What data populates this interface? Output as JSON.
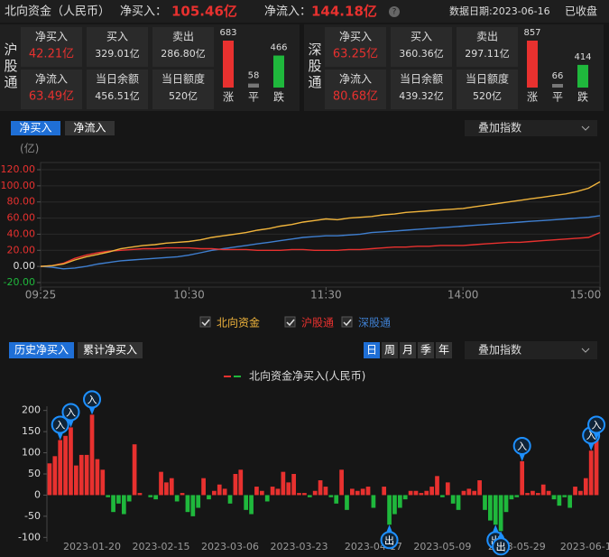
{
  "header": {
    "title": "北向资金（人民币）",
    "net_buy_label": "净买入：",
    "net_buy": "105.46亿",
    "net_inflow_label": "净流入：",
    "net_inflow": "144.18亿",
    "date": "数据日期:2023-06-16",
    "status": "已收盘"
  },
  "panels": [
    {
      "name": "沪股通",
      "stats": [
        {
          "label": "净买入",
          "value": "42.21亿"
        },
        {
          "label": "买入",
          "value": "329.01亿"
        },
        {
          "label": "卖出",
          "value": "286.80亿"
        },
        {
          "label": "净流入",
          "value": "63.49亿"
        },
        {
          "label": "当日余额",
          "value": "456.51亿"
        },
        {
          "label": "当日额度",
          "value": "520亿"
        }
      ],
      "breadth": [
        {
          "label": "涨",
          "value": 683,
          "color": "#e8312f"
        },
        {
          "label": "平",
          "value": 58,
          "color": "#777777"
        },
        {
          "label": "跌",
          "value": 466,
          "color": "#1fb83c"
        }
      ]
    },
    {
      "name": "深股通",
      "stats": [
        {
          "label": "净买入",
          "value": "63.25亿"
        },
        {
          "label": "买入",
          "value": "360.36亿"
        },
        {
          "label": "卖出",
          "value": "297.11亿"
        },
        {
          "label": "净流入",
          "value": "80.68亿"
        },
        {
          "label": "当日余额",
          "value": "439.32亿"
        },
        {
          "label": "当日额度",
          "value": "520亿"
        }
      ],
      "breadth": [
        {
          "label": "涨",
          "value": 857,
          "color": "#e8312f"
        },
        {
          "label": "平",
          "value": 66,
          "color": "#777777"
        },
        {
          "label": "跌",
          "value": 414,
          "color": "#1fb83c"
        }
      ]
    }
  ],
  "tabs_top": [
    "净买入",
    "净流入"
  ],
  "overlay_top": "叠加指数",
  "tabs_bottom": [
    "历史净买入",
    "累计净买入"
  ],
  "periods": [
    "日",
    "周",
    "月",
    "季",
    "年"
  ],
  "overlay_bottom": "叠加指数",
  "chart_data": [
    {
      "type": "line",
      "y_unit": "(亿)",
      "ylim": [
        -20,
        120
      ],
      "grid": true,
      "yticks": [
        {
          "value": 120,
          "label": "120.00"
        },
        {
          "value": 100,
          "label": "100.00"
        },
        {
          "value": 80,
          "label": "80.00"
        },
        {
          "value": 60,
          "label": "60.00"
        },
        {
          "value": 40,
          "label": "40.00"
        },
        {
          "value": 20,
          "label": "20.00"
        },
        {
          "value": 0,
          "label": "0.00"
        },
        {
          "value": -20,
          "label": "-20.00"
        }
      ],
      "categories": [
        "09:25",
        null,
        null,
        null,
        null,
        null,
        null,
        null,
        null,
        null,
        null,
        null,
        null,
        "10:30",
        null,
        null,
        null,
        null,
        null,
        null,
        null,
        null,
        null,
        null,
        null,
        "11:30",
        null,
        null,
        null,
        null,
        null,
        null,
        null,
        null,
        null,
        null,
        null,
        "14:00",
        null,
        null,
        null,
        null,
        null,
        null,
        null,
        null,
        null,
        null,
        null,
        "15:00"
      ],
      "series": [
        {
          "name": "北向资金",
          "color": "#f0b43c",
          "values": [
            0,
            1,
            3,
            8,
            12,
            15,
            18,
            22,
            24,
            26,
            27,
            29,
            30,
            31,
            33,
            36,
            38,
            40,
            42,
            45,
            47,
            50,
            52,
            55,
            57,
            59,
            58,
            60,
            61,
            62,
            64,
            65,
            67,
            68,
            69,
            70,
            71,
            72,
            74,
            76,
            78,
            80,
            82,
            84,
            86,
            88,
            90,
            93,
            97,
            105
          ]
        },
        {
          "name": "沪股通",
          "color": "#e8312f",
          "values": [
            0,
            1,
            4,
            10,
            14,
            17,
            19,
            20,
            21,
            22,
            22,
            23,
            23,
            23,
            22,
            22,
            21,
            21,
            21,
            20,
            20,
            20,
            21,
            21,
            20,
            20,
            20,
            21,
            21,
            22,
            23,
            24,
            24,
            25,
            25,
            26,
            26,
            26,
            27,
            28,
            29,
            30,
            30,
            31,
            32,
            33,
            34,
            35,
            36,
            42
          ]
        },
        {
          "name": "深股通",
          "color": "#3f7fd0",
          "values": [
            0,
            -1,
            -3,
            -2,
            0,
            3,
            5,
            7,
            8,
            9,
            10,
            11,
            12,
            14,
            17,
            20,
            22,
            24,
            26,
            28,
            30,
            32,
            34,
            36,
            37,
            38,
            38,
            39,
            40,
            42,
            43,
            44,
            45,
            46,
            47,
            48,
            49,
            50,
            51,
            52,
            53,
            54,
            55,
            56,
            57,
            58,
            59,
            60,
            61,
            63
          ]
        }
      ]
    },
    {
      "type": "bar",
      "legend": "北向资金净买入(人民币)",
      "ylim": [
        -110,
        210
      ],
      "yticks": [
        200,
        150,
        100,
        50,
        0,
        -50,
        -100
      ],
      "up_color": "#e8312f",
      "down_color": "#1fb83c",
      "categories": [
        null,
        null,
        null,
        null,
        null,
        null,
        null,
        null,
        "2023-01-20",
        null,
        null,
        null,
        null,
        null,
        null,
        null,
        null,
        null,
        null,
        null,
        null,
        "2023-02-15",
        null,
        null,
        null,
        null,
        null,
        null,
        null,
        null,
        null,
        null,
        null,
        null,
        "2023-03-06",
        null,
        null,
        null,
        null,
        null,
        null,
        null,
        null,
        null,
        null,
        null,
        null,
        "2023-03-23",
        null,
        null,
        null,
        null,
        null,
        null,
        null,
        null,
        null,
        null,
        null,
        null,
        null,
        "2023-04-17",
        null,
        null,
        null,
        null,
        null,
        null,
        null,
        null,
        null,
        null,
        null,
        null,
        "2023-05-09",
        null,
        null,
        null,
        null,
        null,
        null,
        null,
        null,
        null,
        null,
        null,
        null,
        null,
        "2023-05-29",
        null,
        null,
        null,
        null,
        null,
        null,
        null,
        null,
        null,
        null,
        null,
        null,
        "2023-06-1",
        null,
        null
      ],
      "values": [
        75,
        92,
        130,
        140,
        160,
        70,
        95,
        95,
        190,
        85,
        60,
        -5,
        -40,
        -20,
        -45,
        -15,
        120,
        5,
        0,
        -5,
        -10,
        55,
        30,
        40,
        -15,
        5,
        -40,
        -50,
        -30,
        40,
        -10,
        10,
        25,
        15,
        -20,
        50,
        60,
        -35,
        -45,
        20,
        10,
        -15,
        20,
        15,
        55,
        30,
        50,
        5,
        5,
        -5,
        10,
        35,
        20,
        -5,
        -20,
        60,
        -35,
        15,
        10,
        15,
        20,
        -30,
        0,
        20,
        -70,
        -45,
        -30,
        -10,
        10,
        10,
        5,
        10,
        20,
        45,
        -5,
        30,
        -20,
        -35,
        10,
        15,
        10,
        35,
        -35,
        -60,
        -70,
        -85,
        -40,
        -10,
        -5,
        80,
        5,
        10,
        5,
        25,
        10,
        -10,
        -25,
        -5,
        -30,
        20,
        10,
        40,
        105,
        130
      ],
      "flags": [
        null,
        null,
        "入",
        null,
        "入",
        null,
        null,
        null,
        "入",
        null,
        null,
        null,
        null,
        null,
        null,
        null,
        null,
        null,
        null,
        null,
        null,
        null,
        null,
        null,
        null,
        null,
        null,
        null,
        null,
        null,
        null,
        null,
        null,
        null,
        null,
        null,
        null,
        null,
        null,
        null,
        null,
        null,
        null,
        null,
        null,
        null,
        null,
        null,
        null,
        null,
        null,
        null,
        null,
        null,
        null,
        null,
        null,
        null,
        null,
        null,
        null,
        null,
        null,
        null,
        "出",
        null,
        null,
        null,
        null,
        null,
        null,
        null,
        null,
        null,
        null,
        null,
        null,
        null,
        null,
        null,
        null,
        null,
        null,
        null,
        "出",
        "出",
        null,
        null,
        null,
        "入",
        null,
        null,
        null,
        null,
        null,
        null,
        null,
        null,
        null,
        null,
        null,
        null,
        "入",
        "入"
      ]
    }
  ]
}
